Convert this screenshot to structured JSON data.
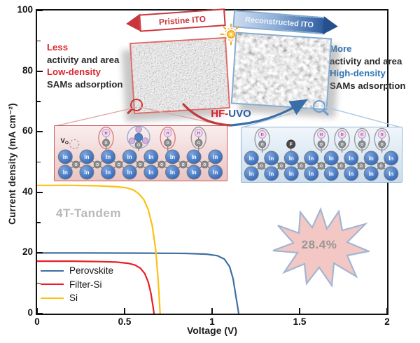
{
  "figure": {
    "efficiency": "28.4%",
    "tandem_label": "4T-Tandem"
  },
  "chart_data": {
    "type": "line",
    "title": "",
    "xlabel": "Voltage (V)",
    "ylabel": "Current density (mA cm⁻²)",
    "xlim": [
      0,
      2
    ],
    "ylim": [
      0,
      100
    ],
    "grid": false,
    "legend_position": "lower-left",
    "xticks": [
      {
        "v": 0,
        "label": "0"
      },
      {
        "v": 0.5,
        "label": "0.5"
      },
      {
        "v": 1,
        "label": "1"
      },
      {
        "v": 1.5,
        "label": "1.5"
      },
      {
        "v": 2,
        "label": "2"
      }
    ],
    "yticks": [
      {
        "v": 0,
        "label": "0"
      },
      {
        "v": 20,
        "label": "20"
      },
      {
        "v": 40,
        "label": "40"
      },
      {
        "v": 60,
        "label": "60"
      },
      {
        "v": 80,
        "label": "80"
      },
      {
        "v": 100,
        "label": "100"
      }
    ],
    "yminor": [
      10,
      30,
      50,
      70,
      90
    ],
    "annotations": [
      "4T-Tandem",
      "28.4%"
    ],
    "series": [
      {
        "name": "Perovskite",
        "color": "#3f6fa3",
        "points": [
          [
            0,
            20
          ],
          [
            0.3,
            20
          ],
          [
            0.6,
            19.95
          ],
          [
            0.85,
            19.85
          ],
          [
            0.97,
            19.6
          ],
          [
            1.03,
            19.1
          ],
          [
            1.07,
            18
          ],
          [
            1.1,
            15.5
          ],
          [
            1.12,
            11.5
          ],
          [
            1.135,
            6
          ],
          [
            1.148,
            1.5
          ],
          [
            1.152,
            0
          ]
        ]
      },
      {
        "name": "Filter-Si",
        "color": "#e81e25",
        "points": [
          [
            0,
            17.3
          ],
          [
            0.2,
            17.3
          ],
          [
            0.35,
            17.15
          ],
          [
            0.45,
            17
          ],
          [
            0.52,
            16.6
          ],
          [
            0.56,
            16
          ],
          [
            0.59,
            15
          ],
          [
            0.615,
            13.2
          ],
          [
            0.635,
            10.4
          ],
          [
            0.65,
            6.8
          ],
          [
            0.662,
            2.5
          ],
          [
            0.668,
            0
          ]
        ]
      },
      {
        "name": "Si",
        "color": "#fcc012",
        "points": [
          [
            0,
            42.3
          ],
          [
            0.2,
            42.3
          ],
          [
            0.35,
            42.15
          ],
          [
            0.45,
            41.9
          ],
          [
            0.51,
            41.5
          ],
          [
            0.55,
            40.8
          ],
          [
            0.58,
            39.6
          ],
          [
            0.61,
            37.6
          ],
          [
            0.635,
            34.3
          ],
          [
            0.658,
            29
          ],
          [
            0.678,
            21
          ],
          [
            0.692,
            11
          ],
          [
            0.7,
            3
          ],
          [
            0.703,
            0
          ]
        ]
      }
    ]
  },
  "inset": {
    "pristine_arrow": "Pristine ITO",
    "reconstructed_arrow": "Reconstructed ITO",
    "hf_label": "HF-",
    "uvo_label": "UVO",
    "left_text": {
      "line1": "Less",
      "line2": "activity and area",
      "line3": "Low-density",
      "line4": "SAMs adsorption"
    },
    "right_text": {
      "line1": "More",
      "line2": "activity and area",
      "line3": "High-density",
      "line4": "SAMs adsorption"
    },
    "atoms": {
      "indium": "In",
      "oxygen": "O",
      "hydrogen": "H",
      "fluorine": "F",
      "vacancy_main": "V",
      "vacancy_sub": "O"
    },
    "colors": {
      "red_accent": "#d7282f",
      "blue_accent": "#2e74b5",
      "star_fill": "#f3c6c3",
      "star_stroke": "#9eb4d2"
    },
    "lattices": {
      "left": {
        "adsorbates": [
          {
            "type": "vacancy",
            "fx": 0.115
          },
          {
            "type": "OH",
            "fx": 0.3,
            "ring": "#d87f7f"
          },
          {
            "type": "molecule",
            "fx": 0.49,
            "ring": "#93afd2"
          },
          {
            "type": "OH",
            "fx": 0.66,
            "ring": "#d87f7f"
          },
          {
            "type": "OH",
            "fx": 0.84,
            "ring": "#9a9a9a"
          }
        ]
      },
      "right": {
        "adsorbates": [
          {
            "type": "OH",
            "fx": 0.13,
            "ring": "#9a9a9a"
          },
          {
            "type": "F",
            "fx": 0.31
          },
          {
            "type": "OH",
            "fx": 0.5,
            "ring": "#9a9a9a"
          },
          {
            "type": "OH",
            "fx": 0.63,
            "ring": "#9a9a9a"
          },
          {
            "type": "OH",
            "fx": 0.755,
            "ring": "#9a9a9a"
          },
          {
            "type": "OH",
            "fx": 0.88,
            "ring": "#9a9a9a"
          }
        ]
      }
    }
  }
}
